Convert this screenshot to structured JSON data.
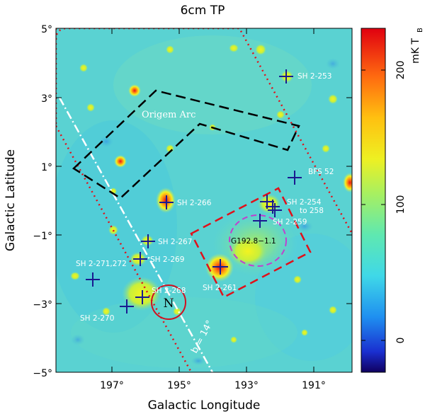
{
  "figure": {
    "title": "6cm TP",
    "x_axis_label": "Galactic Longitude",
    "y_axis_label": "Galactic Latitude",
    "x_ticks": [
      "197°",
      "195°",
      "193°",
      "191°"
    ],
    "y_ticks": [
      "5°",
      "3°",
      "1°",
      "−1°",
      "−3°",
      "−5°"
    ],
    "colorbar": {
      "label": "mK T",
      "label_sub": "B",
      "ticks": [
        "200",
        "100",
        "0"
      ]
    }
  },
  "annotations": {
    "origem_arc": "Origem Arc",
    "plane_label": "b = 14°",
    "north_marker": "N"
  },
  "sources": {
    "sh2_253": "SH 2-253",
    "bfs_52": "BFS 52",
    "sh2_254": "SH 2-254",
    "sh2_254_to": "to 258",
    "sh2_259": "SH 2-259",
    "sh2_266": "SH 2-266",
    "sh2_267": "SH 2-267",
    "sh2_269": "SH 2-269",
    "sh2_271_272": "SH 2-271,272",
    "sh2_268": "SH 2-268",
    "sh2_270": "SH 2-270",
    "sh2_261": "SH 2-261",
    "g192": "G192.8−1.1"
  }
}
